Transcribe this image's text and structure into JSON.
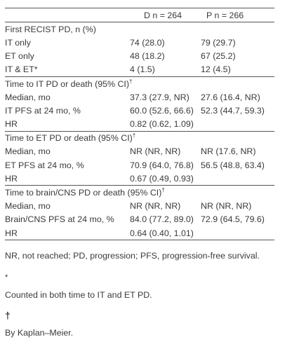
{
  "header": {
    "col1": "",
    "col2": "D n = 264",
    "col3": "P n = 266"
  },
  "rows": [
    {
      "label": "First RECIST PD, n (%)",
      "d": "",
      "p": "",
      "section": true
    },
    {
      "label": "IT only",
      "d": "74 (28.0)",
      "p": "79 (29.7)"
    },
    {
      "label": "ET only",
      "d": "48 (18.2)",
      "p": "67 (25.2)"
    },
    {
      "label": "IT & ET*",
      "d": "4 (1.5)",
      "p": "12 (4.5)"
    },
    {
      "label": "Time to IT PD or death (95% CI)",
      "sup": "†",
      "d": "",
      "p": "",
      "section": true
    },
    {
      "label": "Median, mo",
      "d": "37.3 (27.9, NR)",
      "p": "27.6 (16.4, NR)"
    },
    {
      "label": "IT PFS at 24 mo, %",
      "d": "60.0 (52.6, 66.6)",
      "p": "52.3 (44.7, 59.3)"
    },
    {
      "label": "HR",
      "d": "0.82 (0.62, 1.09)",
      "p": ""
    },
    {
      "label": "Time to ET PD or death (95% CI)",
      "sup": "†",
      "d": "",
      "p": "",
      "section": true
    },
    {
      "label": "Median, mo",
      "d": "NR (NR, NR)",
      "p": "NR (17.6, NR)"
    },
    {
      "label": "ET PFS at 24 mo, %",
      "d": "70.9 (64.0, 76.8)",
      "p": "56.5 (48.8, 63.4)"
    },
    {
      "label": "HR",
      "d": "0.67 (0.49, 0.93)",
      "p": ""
    },
    {
      "label": "Time to brain/CNS PD or death (95% CI)",
      "sup": "†",
      "d": "",
      "p": "",
      "section": true
    },
    {
      "label": "Median, mo",
      "d": "NR (NR, NR)",
      "p": "NR (NR, NR)"
    },
    {
      "label": "Brain/CNS PFS at 24 mo, %",
      "d": "84.0 (77.2, 89.0)",
      "p": "72.9 (64.5, 79.6)"
    },
    {
      "label": "HR",
      "d": "0.64 (0.40, 1.01)",
      "p": ""
    }
  ],
  "footnotes": {
    "general": "NR, not reached; PD, progression; PFS, progression-free survival.",
    "star_mark": "*",
    "star_text": "Counted in both time to IT and ET PD.",
    "dagger_mark": "†",
    "dagger_text": "By Kaplan–Meier."
  }
}
